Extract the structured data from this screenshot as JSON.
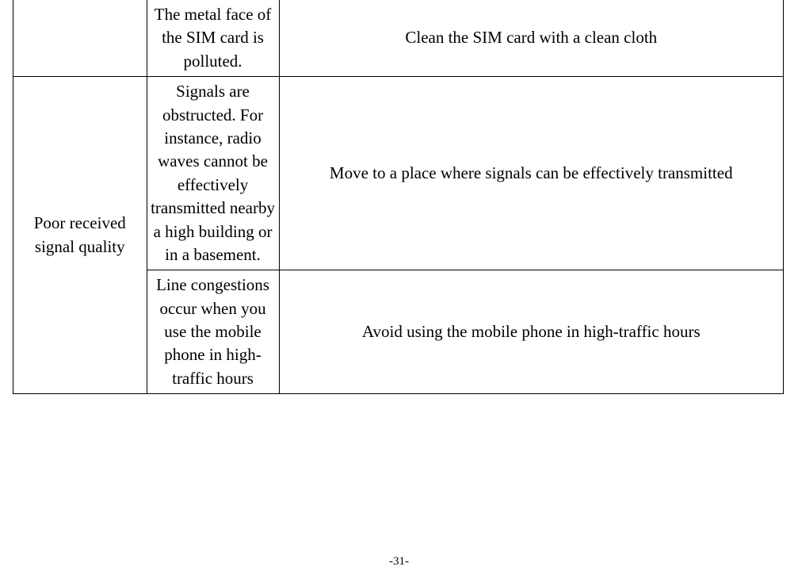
{
  "table": {
    "rows": [
      {
        "problem": "",
        "cause": "The metal face of the SIM card is polluted.",
        "solution": "Clean the SIM card with a clean cloth"
      },
      {
        "problem": "Poor received signal quality",
        "cause": "Signals are obstructed. For instance, radio waves cannot be effectively transmitted nearby a high building or in a basement.",
        "solution": "Move to a place where signals can be effectively transmitted"
      },
      {
        "problem": "",
        "cause": "Line congestions occur when you use the mobile phone in high-traffic hours",
        "solution": "Avoid using the mobile phone in high-traffic hours"
      }
    ]
  },
  "page_number": "-31-"
}
